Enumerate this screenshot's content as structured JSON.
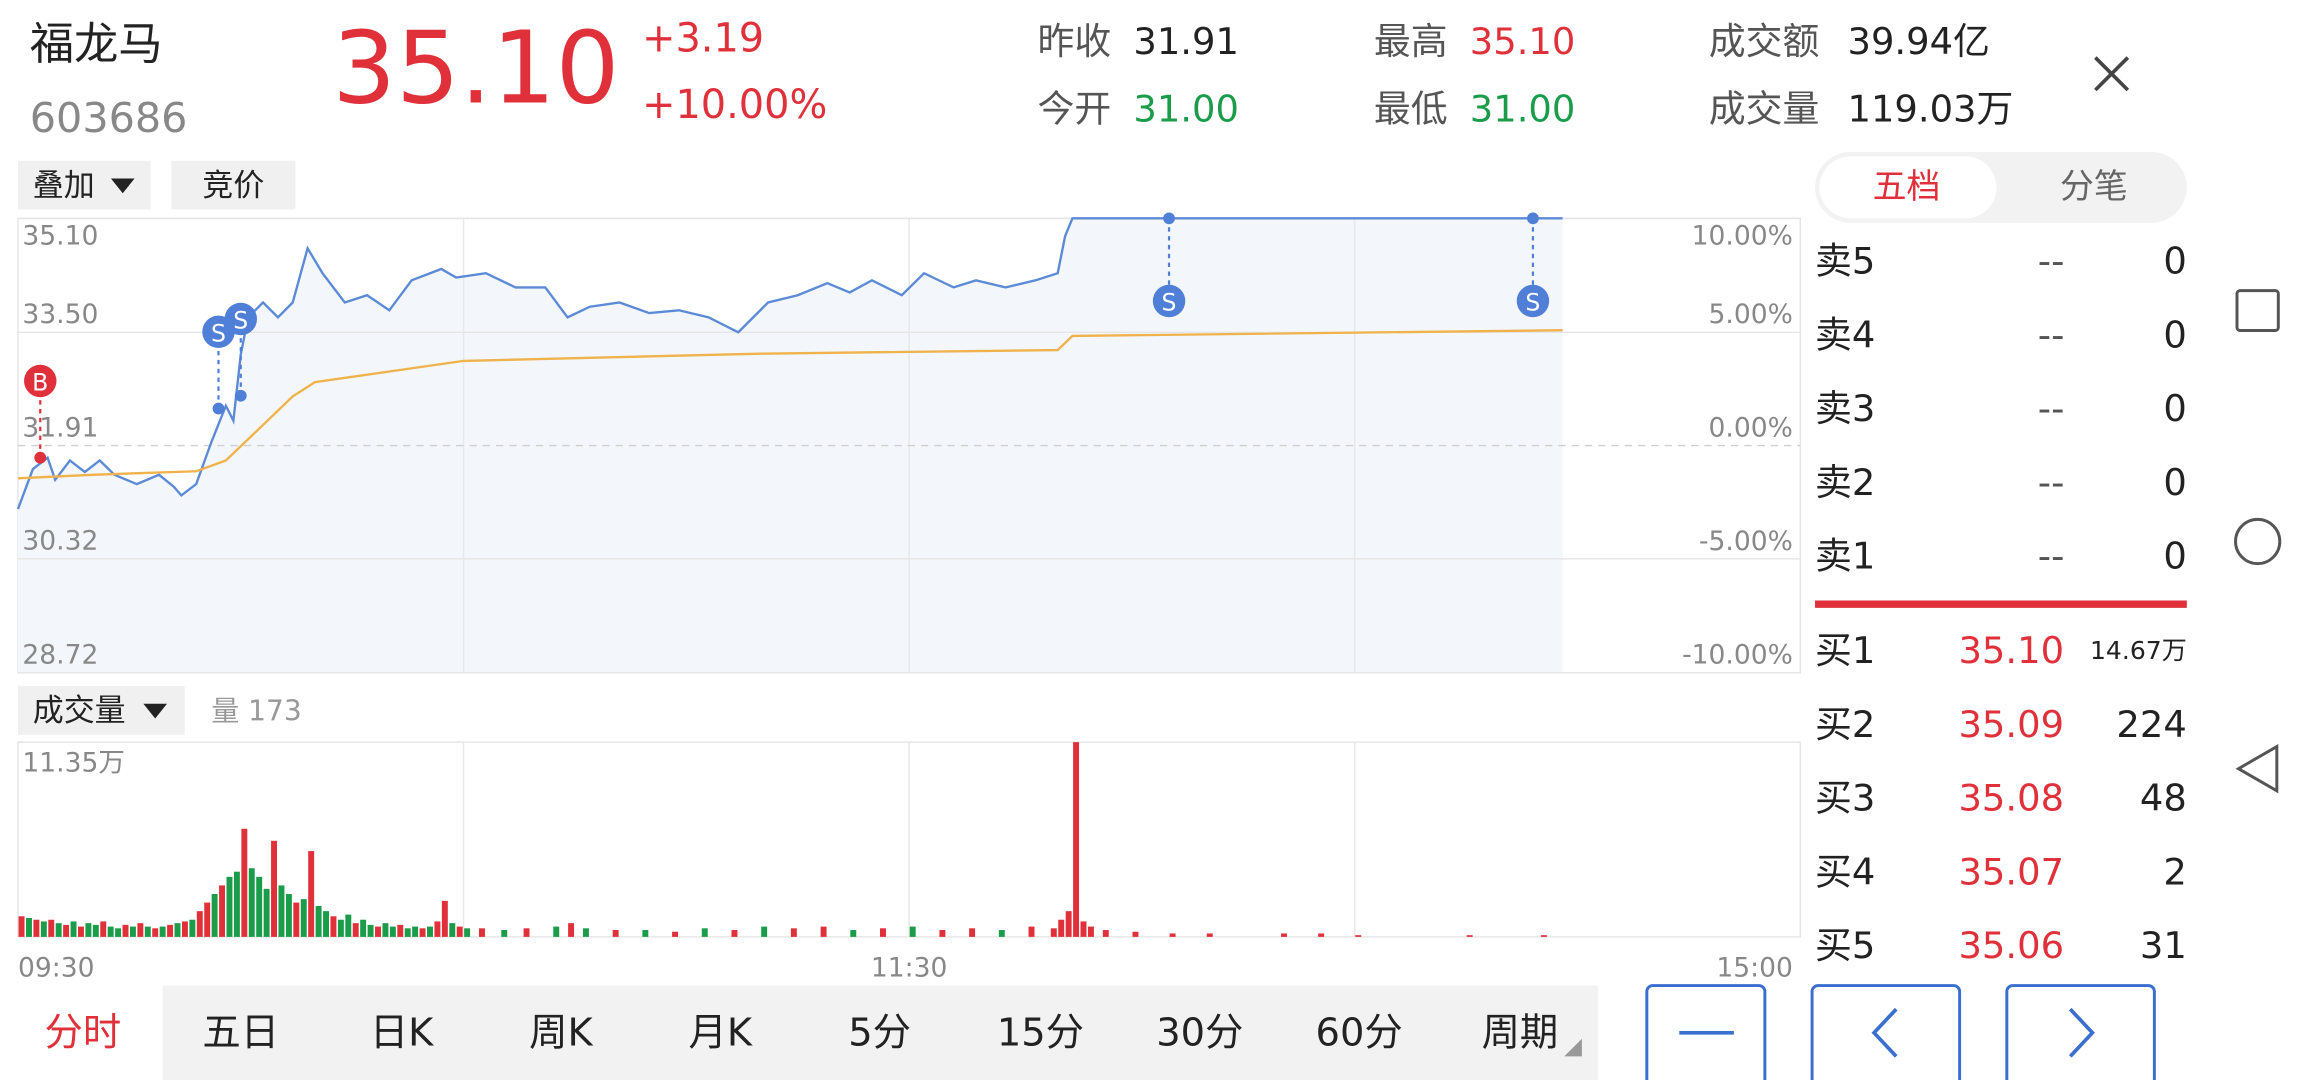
{
  "header": {
    "name": "福龙马",
    "code": "603686",
    "price": "35.10",
    "change": "+3.19",
    "change_pct": "+10.00%",
    "stats": [
      {
        "label": "昨收",
        "value": "31.91",
        "color": "#222222"
      },
      {
        "label": "今开",
        "value": "31.00",
        "color": "#1a9c4a"
      },
      {
        "label": "最高",
        "value": "35.10",
        "color": "#e0303a"
      },
      {
        "label": "最低",
        "value": "31.00",
        "color": "#1a9c4a"
      },
      {
        "label": "成交额",
        "value": "39.94亿",
        "color": "#222222"
      },
      {
        "label": "成交量",
        "value": "119.03万",
        "color": "#222222"
      }
    ]
  },
  "toolbar": {
    "overlay": "叠加",
    "auction": "竞价"
  },
  "chart_data": [
    {
      "type": "line",
      "xlim": [
        0,
        240
      ],
      "xgrid": [
        60,
        120,
        180
      ],
      "ylim": [
        28.72,
        35.1
      ],
      "yticks": [
        {
          "value": 35.1,
          "label": "35.10"
        },
        {
          "value": 33.5,
          "label": "33.50"
        },
        31.91,
        30.32,
        28.72
      ],
      "y2lim": [
        -10,
        10
      ],
      "y2ticks": [
        {
          "value": 10,
          "label": "10.00%"
        },
        {
          "value": 5,
          "label": "5.00%"
        },
        {
          "value": 0,
          "label": "0.00%"
        },
        {
          "value": -5,
          "label": "-5.00%"
        },
        {
          "value": -10,
          "label": "-10.00%"
        }
      ],
      "area_color": "#f3f6fb",
      "series": [
        {
          "color": "#5b8bd6",
          "x": [
            0,
            2,
            4,
            5,
            7,
            9,
            11,
            13,
            16,
            19,
            21,
            22,
            24,
            26,
            28,
            29,
            30,
            31,
            33,
            35,
            37,
            39,
            41,
            44,
            47,
            50,
            53,
            57,
            59,
            63,
            67,
            71,
            74,
            77,
            81,
            85,
            89,
            93,
            97,
            101,
            105,
            109,
            112,
            115,
            119,
            122,
            126,
            129,
            133,
            137,
            140,
            141,
            142,
            208
          ],
          "values": [
            31.02,
            31.58,
            31.74,
            31.43,
            31.7,
            31.54,
            31.7,
            31.5,
            31.37,
            31.5,
            31.33,
            31.21,
            31.37,
            31.95,
            32.47,
            32.26,
            33.19,
            33.71,
            33.92,
            33.71,
            33.92,
            34.68,
            34.33,
            33.92,
            34.02,
            33.81,
            34.23,
            34.39,
            34.27,
            34.33,
            34.13,
            34.13,
            33.71,
            33.86,
            33.92,
            33.77,
            33.81,
            33.71,
            33.5,
            33.92,
            34.02,
            34.19,
            34.06,
            34.23,
            34.02,
            34.33,
            34.13,
            34.23,
            34.13,
            34.23,
            34.33,
            34.85,
            35.1,
            35.1
          ]
        },
        {
          "color": "#f0b24a",
          "x": [
            0,
            10,
            24,
            28,
            33,
            37,
            40,
            50,
            60,
            100,
            140,
            142,
            208
          ],
          "values": [
            31.45,
            31.5,
            31.55,
            31.7,
            32.2,
            32.6,
            32.8,
            32.95,
            33.1,
            33.2,
            33.25,
            33.45,
            33.53
          ]
        }
      ],
      "markers": [
        {
          "label": "B",
          "x": 3,
          "value": 31.74,
          "color": "#e0303a"
        },
        {
          "label": "S",
          "x": 27,
          "value": 32.43,
          "color": "#4f7fd6"
        },
        {
          "label": "S",
          "x": 30,
          "value": 32.61,
          "color": "#4f7fd6"
        },
        {
          "label": "S",
          "x": 155,
          "value": 35.1,
          "color": "#4f7fd6"
        },
        {
          "label": "S",
          "x": 204,
          "value": 35.1,
          "color": "#4f7fd6"
        }
      ]
    },
    {
      "type": "bar",
      "title": "成交量",
      "annotation": "量 173",
      "xlim": [
        0,
        240
      ],
      "xgrid": [
        60,
        120,
        180
      ],
      "xticks": [
        {
          "value": 0,
          "label": "09:30"
        },
        {
          "value": 120,
          "label": "11:30"
        },
        {
          "value": 240,
          "label": "15:00"
        }
      ],
      "ylim": [
        0,
        11.35
      ],
      "yticks": [
        {
          "value": 11.35,
          "label": "11.35万"
        }
      ],
      "up_color": "#e0303a",
      "down_color": "#1a9c4a",
      "x": [
        0,
        1,
        2,
        3,
        4,
        5,
        6,
        7,
        8,
        9,
        10,
        11,
        12,
        13,
        14,
        15,
        16,
        17,
        18,
        19,
        20,
        21,
        22,
        23,
        24,
        25,
        26,
        27,
        28,
        29,
        30,
        31,
        32,
        33,
        34,
        35,
        36,
        37,
        38,
        39,
        40,
        41,
        42,
        43,
        44,
        45,
        46,
        47,
        48,
        49,
        50,
        51,
        52,
        53,
        54,
        55,
        56,
        57,
        58,
        59,
        60,
        62,
        65,
        68,
        72,
        74,
        76,
        80,
        84,
        88,
        92,
        96,
        100,
        104,
        108,
        112,
        116,
        120,
        124,
        128,
        132,
        136,
        139,
        140,
        141,
        142,
        143,
        144,
        146,
        150,
        155,
        160,
        170,
        175,
        180,
        195,
        205
      ],
      "values": [
        1.2,
        1.1,
        1.0,
        0.9,
        1.0,
        0.8,
        0.7,
        0.9,
        0.6,
        0.8,
        0.7,
        0.9,
        0.6,
        0.5,
        0.7,
        0.6,
        0.8,
        0.6,
        0.5,
        0.6,
        0.7,
        0.8,
        0.9,
        1.0,
        1.5,
        2.0,
        2.5,
        3.0,
        3.5,
        3.8,
        6.3,
        4.0,
        3.5,
        2.8,
        5.6,
        3.0,
        2.5,
        2.0,
        2.2,
        5.0,
        1.8,
        1.5,
        1.2,
        1.0,
        1.3,
        0.8,
        1.0,
        0.7,
        0.6,
        0.8,
        0.6,
        0.7,
        0.5,
        0.6,
        0.5,
        0.6,
        0.9,
        2.1,
        0.8,
        0.6,
        0.5,
        0.5,
        0.4,
        0.5,
        0.6,
        0.8,
        0.5,
        0.4,
        0.4,
        0.3,
        0.5,
        0.4,
        0.6,
        0.5,
        0.6,
        0.4,
        0.5,
        0.6,
        0.4,
        0.5,
        0.4,
        0.6,
        0.5,
        1.0,
        1.5,
        11.35,
        0.9,
        0.6,
        0.4,
        0.3,
        0.2,
        0.2,
        0.2,
        0.2,
        0.1,
        0.1,
        0.1
      ],
      "rising": [
        true,
        false,
        true,
        false,
        true,
        false,
        true,
        false,
        true,
        false,
        false,
        true,
        false,
        false,
        true,
        false,
        true,
        false,
        true,
        false,
        true,
        false,
        true,
        false,
        true,
        true,
        false,
        true,
        false,
        false,
        true,
        false,
        false,
        false,
        true,
        false,
        false,
        true,
        false,
        true,
        false,
        false,
        true,
        false,
        false,
        true,
        false,
        false,
        true,
        false,
        false,
        true,
        false,
        false,
        true,
        false,
        true,
        true,
        false,
        true,
        false,
        true,
        false,
        true,
        false,
        true,
        false,
        true,
        false,
        true,
        false,
        true,
        false,
        true,
        true,
        false,
        true,
        false,
        true,
        true,
        false,
        true,
        true,
        true,
        true,
        true,
        true,
        true,
        true,
        true,
        true,
        true,
        true,
        true,
        true,
        true,
        true
      ]
    }
  ],
  "order_book": {
    "tabs": [
      "五档",
      "分笔"
    ],
    "asks": [
      {
        "label": "卖5",
        "price": "--",
        "volume": "0"
      },
      {
        "label": "卖4",
        "price": "--",
        "volume": "0"
      },
      {
        "label": "卖3",
        "price": "--",
        "volume": "0"
      },
      {
        "label": "卖2",
        "price": "--",
        "volume": "0"
      },
      {
        "label": "卖1",
        "price": "--",
        "volume": "0"
      }
    ],
    "bids": [
      {
        "label": "买1",
        "price": "35.10",
        "volume": "14.67万"
      },
      {
        "label": "买2",
        "price": "35.09",
        "volume": "224"
      },
      {
        "label": "买3",
        "price": "35.08",
        "volume": "48"
      },
      {
        "label": "买4",
        "price": "35.07",
        "volume": "2"
      },
      {
        "label": "买5",
        "price": "35.06",
        "volume": "31"
      }
    ]
  },
  "period_tabs": [
    "分时",
    "五日",
    "日K",
    "周K",
    "月K",
    "5分",
    "15分",
    "30分",
    "60分",
    "周期"
  ]
}
